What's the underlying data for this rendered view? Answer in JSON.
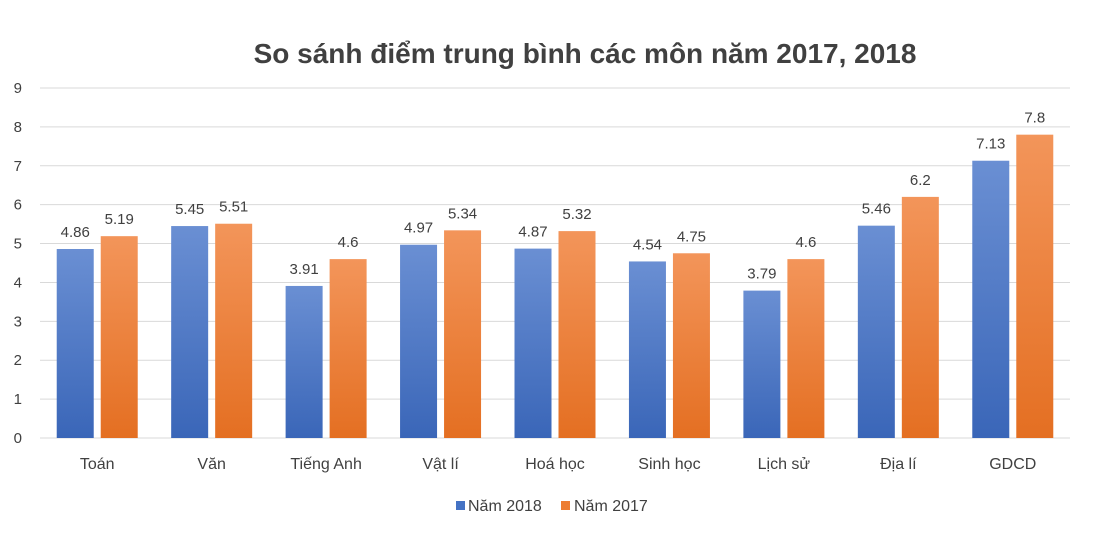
{
  "chart_data": {
    "type": "bar",
    "title": "So sánh điểm trung bình các môn năm 2017, 2018",
    "xlabel": "",
    "ylabel": "",
    "ylim": [
      0,
      9
    ],
    "yticks": [
      "0",
      "1",
      "2",
      "3",
      "4",
      "5",
      "6",
      "7",
      "8",
      "9"
    ],
    "grid": true,
    "legend_position": "bottom",
    "categories": [
      "Toán",
      "Văn",
      "Tiếng Anh",
      "Vật lí",
      "Hoá học",
      "Sinh học",
      "Lịch sử",
      "Địa lí",
      "GDCD"
    ],
    "series": [
      {
        "name": "Năm 2018",
        "color": "#4472c4",
        "values": [
          4.86,
          5.45,
          3.91,
          4.97,
          4.87,
          4.54,
          3.79,
          5.46,
          7.13
        ],
        "labels": [
          "4.86",
          "5.45",
          "3.91",
          "4.97",
          "4.87",
          "4.54",
          "3.79",
          "5.46",
          "7.13"
        ]
      },
      {
        "name": "Năm 2017",
        "color": "#ed7d31",
        "values": [
          5.19,
          5.51,
          4.6,
          5.34,
          5.32,
          4.75,
          4.6,
          6.2,
          7.8
        ],
        "labels": [
          "5.19",
          "5.51",
          "4.6",
          "5.34",
          "5.32",
          "4.75",
          "4.6",
          "6.2",
          "7.8"
        ]
      }
    ]
  }
}
